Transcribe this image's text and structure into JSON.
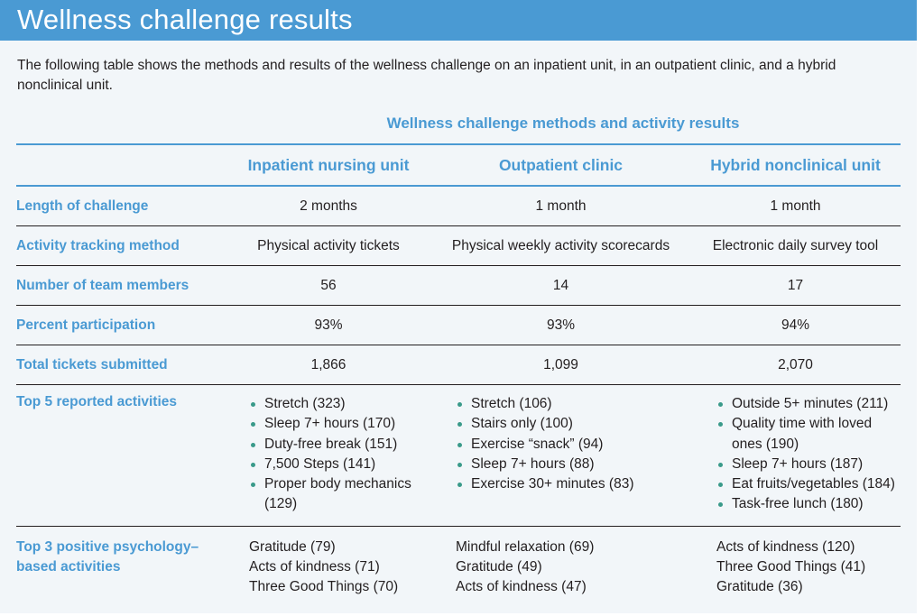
{
  "header": {
    "title": "Wellness challenge results"
  },
  "intro": "The following table shows the methods and results of the wellness challenge on an inpatient unit, in an outpatient clinic, and a hybrid nonclinical unit.",
  "table": {
    "title": "Wellness challenge methods and activity results",
    "columns": [
      "Inpatient nursing unit",
      "Outpatient clinic",
      "Hybrid nonclinical unit"
    ],
    "rows": [
      {
        "label": "Length of challenge",
        "values": [
          "2 months",
          "1 month",
          "1 month"
        ]
      },
      {
        "label": "Activity tracking method",
        "values": [
          "Physical activity tickets",
          "Physical weekly activity scorecards",
          "Electronic daily survey tool"
        ]
      },
      {
        "label": "Number of team members",
        "values": [
          "56",
          "14",
          "17"
        ]
      },
      {
        "label": "Percent participation",
        "values": [
          "93%",
          "93%",
          "94%"
        ]
      },
      {
        "label": "Total tickets submitted",
        "values": [
          "1,866",
          "1,099",
          "2,070"
        ]
      }
    ],
    "top5": {
      "label": "Top 5 reported activities",
      "lists": [
        [
          "Stretch (323)",
          "Sleep 7+ hours (170)",
          "Duty-free break (151)",
          "7,500 Steps (141)",
          "Proper body mechanics (129)"
        ],
        [
          "Stretch (106)",
          "Stairs only (100)",
          "Exercise “snack” (94)",
          "Sleep 7+ hours (88)",
          "Exercise 30+ minutes (83)"
        ],
        [
          "Outside 5+ minutes (211)",
          "Quality time with loved ones (190)",
          "Sleep 7+ hours (187)",
          "Eat fruits/vegetables (184)",
          "Task-free lunch (180)"
        ]
      ]
    },
    "top3": {
      "label": "Top 3 positive psychology–based activities",
      "lists": [
        [
          "Gratitude (79)",
          "Acts of kindness (71)",
          "Three Good Things (70)"
        ],
        [
          "Mindful relaxation (69)",
          "Gratitude (49)",
          "Acts of kindness (47)"
        ],
        [
          "Acts of kindness (120)",
          "Three Good Things (41)",
          "Gratitude (36)"
        ]
      ]
    }
  },
  "colors": {
    "accent": "#4a9ad3",
    "bullet": "#3a9a8a",
    "background": "#f2f6f9"
  }
}
